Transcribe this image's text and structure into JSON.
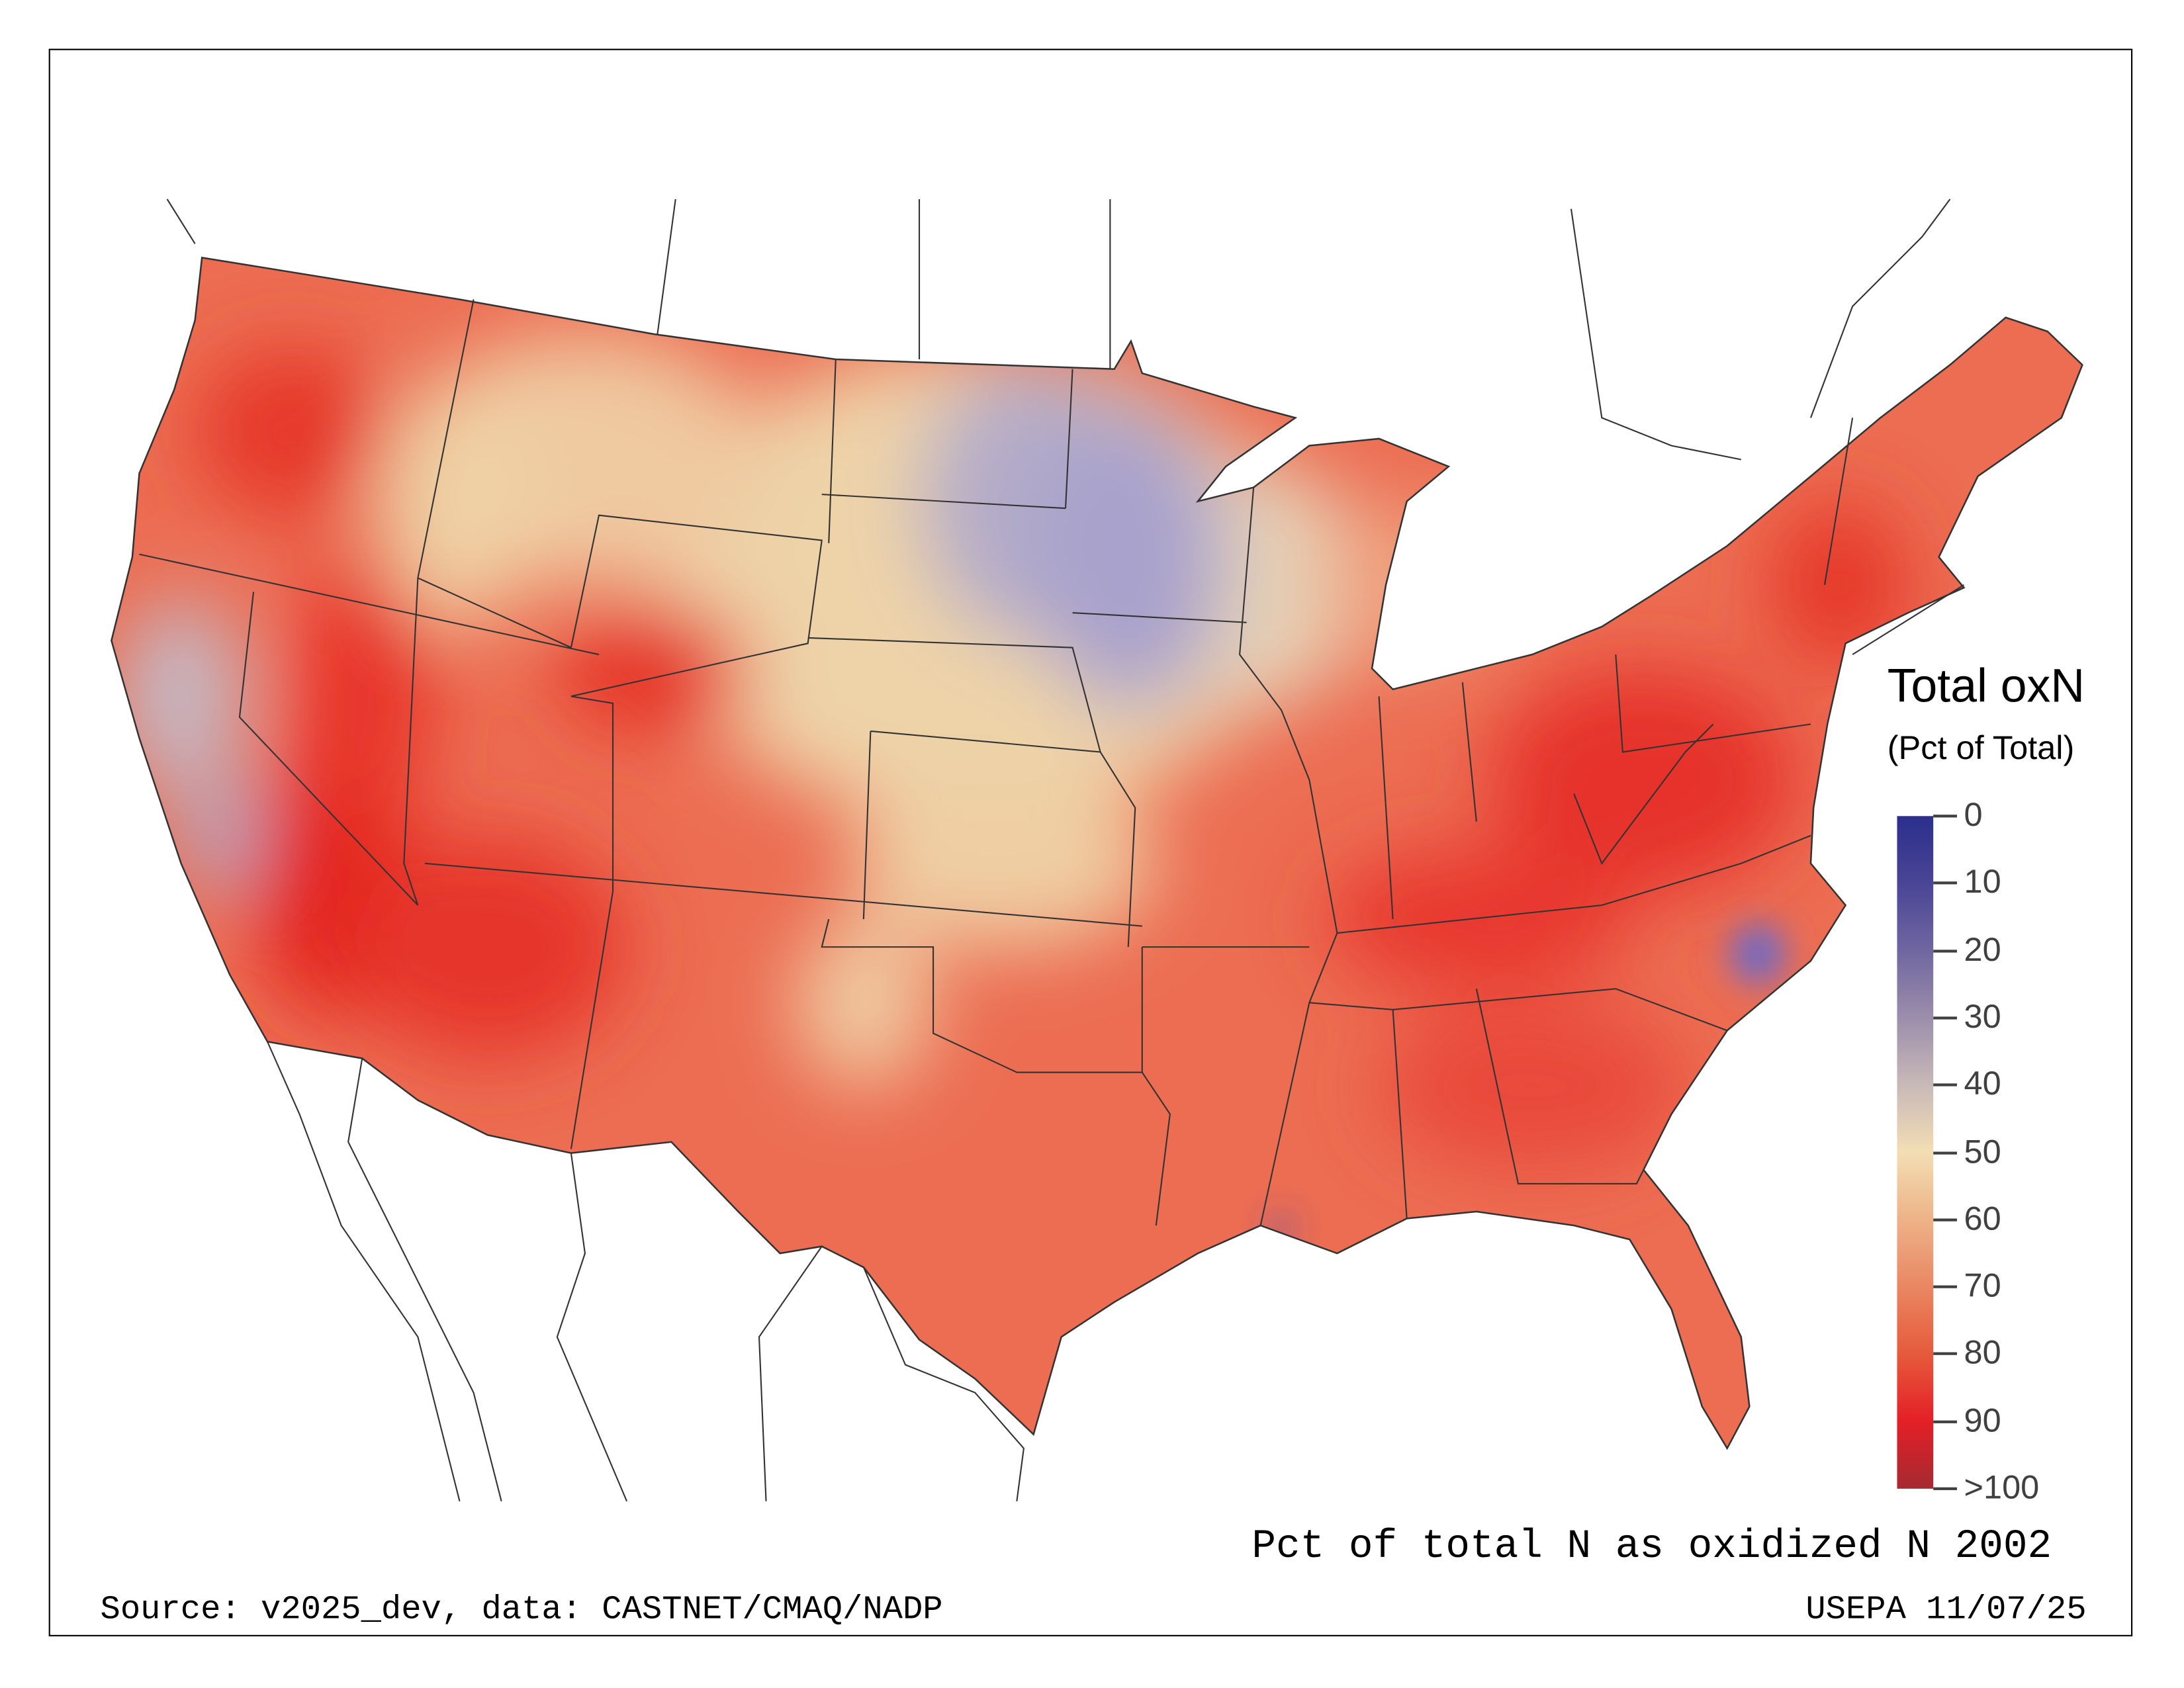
{
  "legend": {
    "title": "Total oxN",
    "subtitle": "(Pct of Total)",
    "ticks": [
      "0",
      "10",
      "20",
      "30",
      "40",
      "50",
      "60",
      "70",
      "80",
      "90",
      ">100"
    ],
    "colors": [
      "#2b2f8c",
      "#4a4596",
      "#6f66a0",
      "#9c8eab",
      "#c8b9b8",
      "#f3deb4",
      "#eeb287",
      "#e98762",
      "#e65a3c",
      "#e41f26",
      "#a52a31"
    ]
  },
  "caption": "Pct of total N as oxidized N 2002",
  "source": "Source: v2025_dev, data: CASTNET/CMAQ/NADP",
  "credit": "USEPA 11/07/25"
}
